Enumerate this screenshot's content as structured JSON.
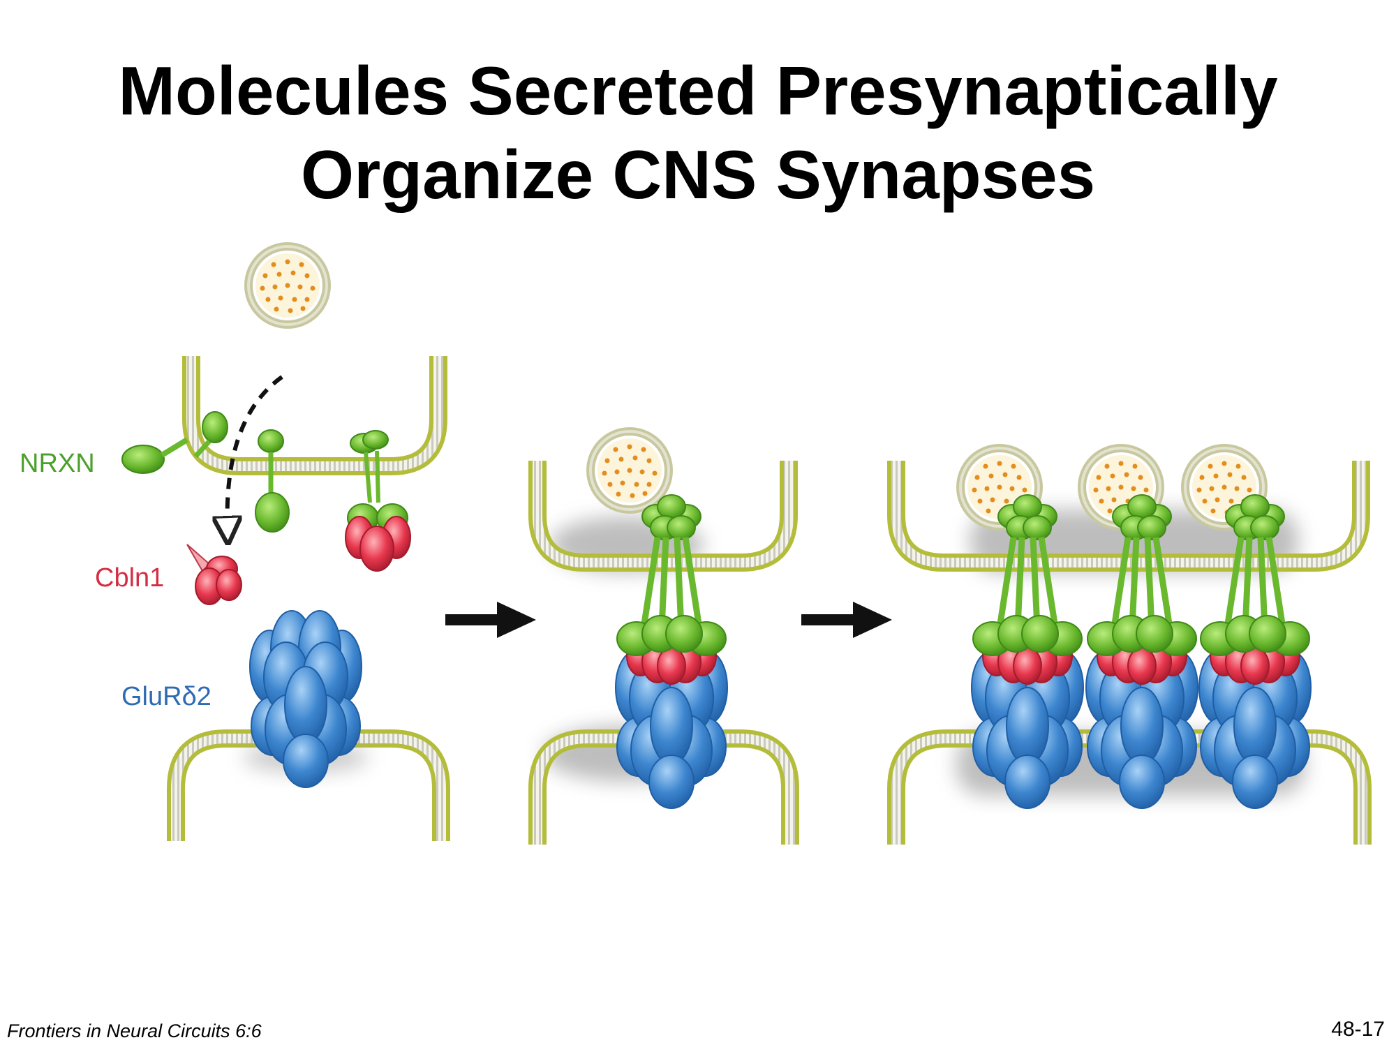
{
  "title": {
    "line1": "Molecules Secreted Presynaptically",
    "line2": "Organize CNS Synapses"
  },
  "labels": {
    "nrxn": "NRXN",
    "cbln1": "Cbln1",
    "glurd2": "GluRδ2"
  },
  "footer": {
    "citation": "Frontiers in Neural Circuits 6:6",
    "slide_number": "48-17"
  },
  "colors": {
    "nrxn": "#6ab82e",
    "cbln1": "#e8384f",
    "glurd2": "#3d86cf",
    "membrane": "#b4bd3a",
    "vesicle_dots": "#e38d1c"
  }
}
